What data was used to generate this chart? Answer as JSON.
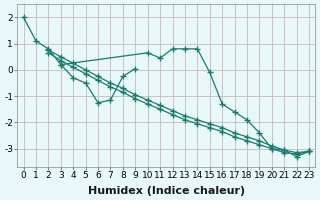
{
  "xlabel": "Humidex (Indice chaleur)",
  "ylabel": "",
  "background_color": "#e8f8f8",
  "grid_color": "#c8b8b8",
  "line_color": "#1a7a6e",
  "series": [
    {
      "x": [
        0,
        1,
        2,
        3,
        10,
        11,
        12,
        13,
        14,
        15,
        16,
        17,
        18,
        19,
        20,
        21,
        22,
        23
      ],
      "y": [
        2.0,
        1.1,
        0.8,
        0.2,
        0.65,
        0.45,
        0.8,
        0.8,
        0.8,
        -0.1,
        -1.3,
        -1.6,
        -1.9,
        -2.4,
        -3.0,
        -3.05,
        -3.3,
        -3.1
      ]
    },
    {
      "x": [
        3,
        4,
        5,
        6,
        7,
        8,
        9
      ],
      "y": [
        0.2,
        -0.3,
        -0.5,
        -1.25,
        -1.15,
        -0.25,
        0.05
      ]
    },
    {
      "x": [
        2,
        3,
        4,
        5,
        6,
        7,
        8,
        9,
        10,
        11,
        12,
        13,
        14,
        15,
        16,
        17,
        18,
        19,
        20,
        21,
        22,
        23
      ],
      "y": [
        0.75,
        0.5,
        0.25,
        0.0,
        -0.25,
        -0.5,
        -0.7,
        -0.95,
        -1.15,
        -1.35,
        -1.55,
        -1.75,
        -1.9,
        -2.05,
        -2.2,
        -2.4,
        -2.55,
        -2.7,
        -2.9,
        -3.05,
        -3.15,
        -3.1
      ]
    },
    {
      "x": [
        2,
        3,
        4,
        5,
        6,
        7,
        8,
        9,
        10,
        11,
        12,
        13,
        14,
        15,
        16,
        17,
        18,
        19,
        20,
        21,
        22,
        23
      ],
      "y": [
        0.65,
        0.35,
        0.1,
        -0.15,
        -0.4,
        -0.65,
        -0.85,
        -1.1,
        -1.3,
        -1.5,
        -1.7,
        -1.9,
        -2.05,
        -2.2,
        -2.35,
        -2.55,
        -2.7,
        -2.85,
        -3.0,
        -3.15,
        -3.2,
        -3.1
      ]
    }
  ],
  "xlim": [
    -0.5,
    23.5
  ],
  "ylim": [
    -3.7,
    2.5
  ],
  "yticks": [
    -3,
    -2,
    -1,
    0,
    1,
    2
  ],
  "xticks": [
    0,
    1,
    2,
    3,
    4,
    5,
    6,
    7,
    8,
    9,
    10,
    11,
    12,
    13,
    14,
    15,
    16,
    17,
    18,
    19,
    20,
    21,
    22,
    23
  ],
  "xtick_labels": [
    "0",
    "1",
    "2",
    "3",
    "4",
    "5",
    "6",
    "7",
    "8",
    "9",
    "10",
    "11",
    "12",
    "13",
    "14",
    "15",
    "16",
    "17",
    "18",
    "19",
    "20",
    "21",
    "22",
    "23"
  ],
  "tick_fontsize": 6.5,
  "label_fontsize": 8
}
